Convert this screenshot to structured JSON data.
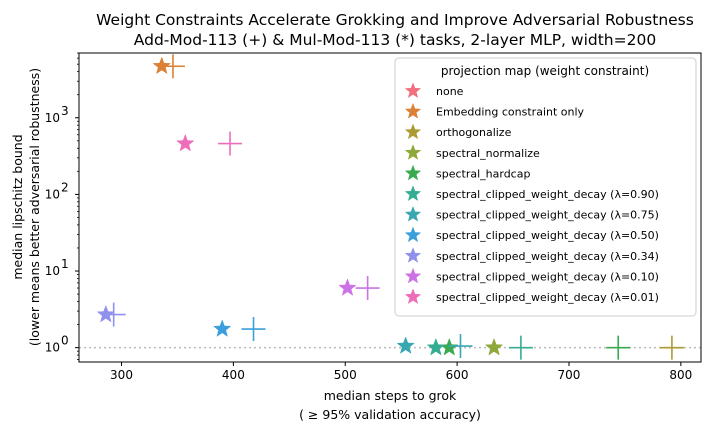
{
  "chart_data": {
    "type": "scatter",
    "title": "Weight Constraints Accelerate Grokking and Improve Adversarial Robustness",
    "subtitle": "Add-Mod-113 (+) & Mul-Mod-113 (*) tasks, 2-layer MLP, width=200",
    "xlabel": "median steps to grok",
    "xlabel2": "( ≥ 95% validation accuracy)",
    "ylabel": "median lipschitz bound",
    "ylabel2": "(lower means better adversarial robustness)",
    "xlim": [
      262,
      818
    ],
    "ylim": [
      0.65,
      7000
    ],
    "yscale": "log",
    "xticks": [
      300,
      400,
      500,
      600,
      700,
      800
    ],
    "yticks": [
      {
        "value": 1,
        "base": "10",
        "exp": "0"
      },
      {
        "value": 10,
        "base": "10",
        "exp": "1"
      },
      {
        "value": 100,
        "base": "10",
        "exp": "2"
      },
      {
        "value": 1000,
        "base": "10",
        "exp": "3"
      }
    ],
    "reference_line": {
      "y": 1,
      "style": "dotted",
      "color": "#bbbbbb"
    },
    "grid": false,
    "legend_title": "projection map (weight constraint)",
    "legend_position": "upper right",
    "series": [
      {
        "name": "none",
        "color": "#f0707f",
        "points": []
      },
      {
        "name": "Embedding constraint only",
        "color": "#db8035",
        "points": [
          {
            "x": 336,
            "y": 4700,
            "marker": "star"
          },
          {
            "x": 346,
            "y": 4700,
            "marker": "plus"
          }
        ]
      },
      {
        "name": "orthogonalize",
        "color": "#ad9a32",
        "points": [
          {
            "x": 792,
            "y": 1.0,
            "marker": "plus"
          }
        ]
      },
      {
        "name": "spectral_normalize",
        "color": "#8fa83a",
        "points": [
          {
            "x": 633,
            "y": 1.0,
            "marker": "star"
          }
        ]
      },
      {
        "name": "spectral_hardcap",
        "color": "#3aaa50",
        "points": [
          {
            "x": 593,
            "y": 1.0,
            "marker": "star"
          },
          {
            "x": 744,
            "y": 1.0,
            "marker": "plus"
          }
        ]
      },
      {
        "name": "spectral_clipped_weight_decay (λ=0.90)",
        "color": "#35ad92",
        "points": [
          {
            "x": 581,
            "y": 1.0,
            "marker": "star"
          },
          {
            "x": 657,
            "y": 1.0,
            "marker": "plus"
          }
        ]
      },
      {
        "name": "spectral_clipped_weight_decay (λ=0.75)",
        "color": "#37a7b2",
        "points": [
          {
            "x": 554,
            "y": 1.05,
            "marker": "star"
          },
          {
            "x": 603,
            "y": 1.05,
            "marker": "plus"
          }
        ]
      },
      {
        "name": "spectral_clipped_weight_decay (λ=0.50)",
        "color": "#3a9fdc",
        "points": [
          {
            "x": 390,
            "y": 1.75,
            "marker": "star"
          },
          {
            "x": 418,
            "y": 1.75,
            "marker": "plus"
          }
        ]
      },
      {
        "name": "spectral_clipped_weight_decay (λ=0.34)",
        "color": "#9091ec",
        "points": [
          {
            "x": 286,
            "y": 2.7,
            "marker": "star"
          },
          {
            "x": 293,
            "y": 2.7,
            "marker": "plus"
          }
        ]
      },
      {
        "name": "spectral_clipped_weight_decay (λ=0.10)",
        "color": "#cd72e6",
        "points": [
          {
            "x": 502,
            "y": 6.0,
            "marker": "star"
          },
          {
            "x": 520,
            "y": 6.0,
            "marker": "plus"
          }
        ]
      },
      {
        "name": "spectral_clipped_weight_decay (λ=0.01)",
        "color": "#ee6db8",
        "points": [
          {
            "x": 357,
            "y": 460,
            "marker": "star"
          },
          {
            "x": 397,
            "y": 460,
            "marker": "plus"
          }
        ]
      }
    ]
  }
}
